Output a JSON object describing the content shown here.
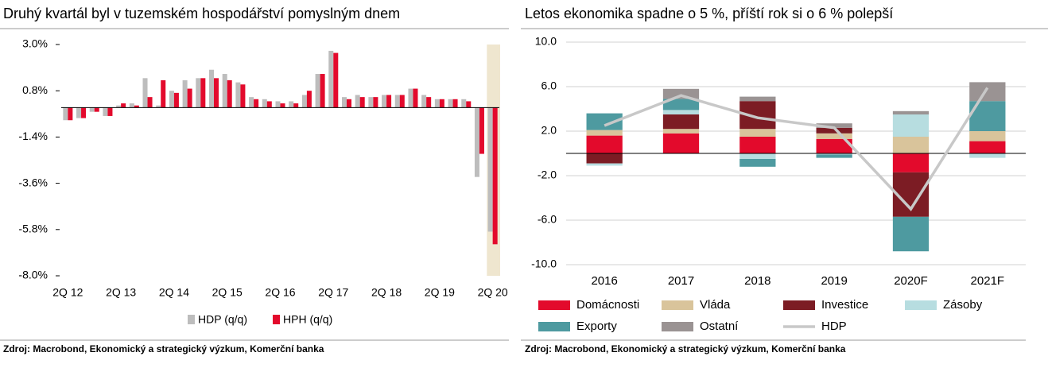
{
  "chart_data": [
    {
      "type": "bar",
      "title": "Druhý kvartál byl v tuzemském hospodářství pomyslným dnem",
      "categories": [
        "2Q 12",
        null,
        null,
        null,
        "2Q 13",
        null,
        null,
        null,
        "2Q 14",
        null,
        null,
        null,
        "2Q 15",
        null,
        null,
        null,
        "2Q 16",
        null,
        null,
        null,
        "2Q 17",
        null,
        null,
        null,
        "2Q 18",
        null,
        null,
        null,
        "2Q 19",
        null,
        null,
        null,
        "2Q 20"
      ],
      "series": [
        {
          "name": "HDP (q/q)",
          "color": "#bdbdbd",
          "values": [
            -0.6,
            -0.5,
            -0.2,
            -0.4,
            0.1,
            0.2,
            1.4,
            0.1,
            0.8,
            1.3,
            1.4,
            1.8,
            1.6,
            1.2,
            0.5,
            0.4,
            0.3,
            0.3,
            0.6,
            1.6,
            2.7,
            0.5,
            0.6,
            0.5,
            0.6,
            0.6,
            0.9,
            0.6,
            0.4,
            0.4,
            0.4,
            -3.3,
            -5.9
          ]
        },
        {
          "name": "HPH (q/q)",
          "color": "#e30a2c",
          "values": [
            -0.6,
            -0.5,
            -0.2,
            -0.4,
            0.2,
            0.1,
            0.5,
            1.3,
            0.7,
            0.9,
            1.4,
            1.4,
            1.3,
            1.1,
            0.4,
            0.3,
            0.2,
            0.2,
            0.8,
            1.6,
            2.6,
            0.4,
            0.5,
            0.5,
            0.6,
            0.6,
            0.9,
            0.5,
            0.4,
            0.4,
            0.3,
            -2.2,
            -6.5
          ]
        }
      ],
      "ylim": [
        -8,
        3
      ],
      "yticks": [
        {
          "value": 3,
          "label": "3.0%"
        },
        {
          "value": 0.8,
          "label": "0.8%"
        },
        {
          "value": -1.4,
          "label": "-1.4%"
        },
        {
          "value": -3.6,
          "label": "-3.6%"
        },
        {
          "value": -5.8,
          "label": "-5.8%"
        },
        {
          "value": -8,
          "label": "-8.0%"
        }
      ],
      "grid": false,
      "legend": "bottom",
      "source": "Zdroj: Macrobond, Ekonomický a strategický výzkum, Komerční banka"
    },
    {
      "type": "stacked_bar_line",
      "title": "Letos ekonomika spadne o 5 %, příští rok si o 6 % polepší",
      "categories": [
        "2016",
        "2017",
        "2018",
        "2019",
        "2020F",
        "2021F"
      ],
      "series": [
        {
          "name": "Domácnosti",
          "color": "#e30a2c",
          "values": [
            1.6,
            1.8,
            1.5,
            1.3,
            -1.7,
            1.1
          ]
        },
        {
          "name": "Vláda",
          "color": "#d9c49b",
          "values": [
            0.5,
            0.4,
            0.7,
            0.5,
            1.5,
            0.9
          ]
        },
        {
          "name": "Investice",
          "color": "#7c1c24",
          "values": [
            -0.9,
            1.3,
            2.5,
            0.5,
            -4.0,
            0
          ]
        },
        {
          "name": "Zásoby",
          "color": "#b7dde0",
          "values": [
            -0.2,
            0.4,
            -0.5,
            -0.1,
            2.0,
            -0.4
          ]
        },
        {
          "name": "Exporty",
          "color": "#4e9aa0",
          "values": [
            1.5,
            1.0,
            -0.7,
            -0.3,
            -3.1,
            2.7
          ]
        },
        {
          "name": "Ostatní",
          "color": "#9a9393",
          "values": [
            0,
            0.9,
            0.4,
            0.4,
            0.3,
            1.7
          ]
        },
        {
          "name": "HDP",
          "color": "#c8c8c8",
          "type": "line",
          "values": [
            2.5,
            5.2,
            3.2,
            2.3,
            -5.0,
            5.9
          ]
        }
      ],
      "ylim": [
        -10,
        10
      ],
      "yticks": [
        {
          "value": 10,
          "label": "10.0"
        },
        {
          "value": 6,
          "label": "6.0"
        },
        {
          "value": 2,
          "label": "2.0"
        },
        {
          "value": -2,
          "label": "-2.0"
        },
        {
          "value": -6,
          "label": "-6.0"
        },
        {
          "value": -10,
          "label": "-10.0"
        }
      ],
      "grid": true,
      "legend": "bottom",
      "source": "Zdroj: Macrobond, Ekonomický a strategický výzkum, Komerční banka"
    }
  ]
}
